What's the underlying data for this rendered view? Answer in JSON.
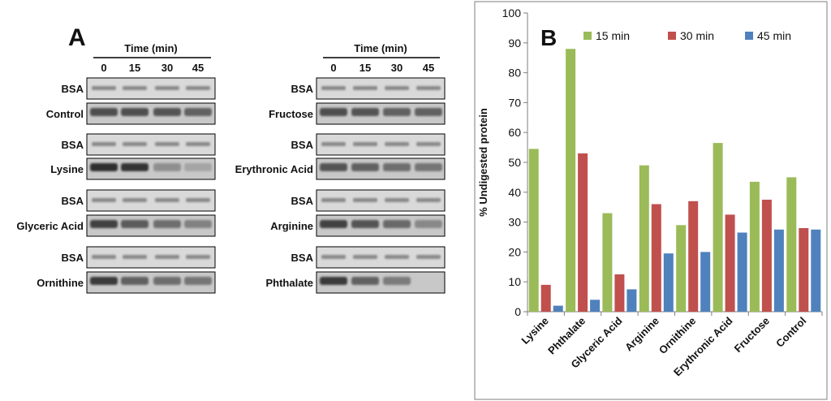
{
  "panel_a": {
    "label": "A",
    "time_header": "Time (min)",
    "time_points": [
      "0",
      "15",
      "30",
      "45"
    ],
    "left_groups": [
      {
        "sample": "Control",
        "bsa_label": "BSA",
        "band_intensity": [
          0.75,
          0.75,
          0.7,
          0.6
        ]
      },
      {
        "sample": "Lysine",
        "bsa_label": "BSA",
        "band_intensity": [
          1.0,
          0.95,
          0.25,
          0.08
        ]
      },
      {
        "sample": "Glyceric Acid",
        "bsa_label": "BSA",
        "band_intensity": [
          0.85,
          0.65,
          0.5,
          0.35
        ]
      },
      {
        "sample": "Ornithine",
        "bsa_label": "BSA",
        "band_intensity": [
          0.9,
          0.6,
          0.5,
          0.45
        ]
      }
    ],
    "right_groups": [
      {
        "sample": "Fructose",
        "bsa_label": "BSA",
        "band_intensity": [
          0.75,
          0.7,
          0.6,
          0.6
        ]
      },
      {
        "sample": "Erythronic Acid",
        "bsa_label": "BSA",
        "band_intensity": [
          0.7,
          0.6,
          0.5,
          0.45
        ]
      },
      {
        "sample": "Arginine",
        "bsa_label": "BSA",
        "band_intensity": [
          0.85,
          0.7,
          0.55,
          0.3
        ]
      },
      {
        "sample": "Phthalate",
        "bsa_label": "BSA",
        "band_intensity": [
          0.9,
          0.6,
          0.4,
          0.0
        ]
      }
    ]
  },
  "panel_b": {
    "label": "B"
  },
  "chart_data": {
    "type": "bar",
    "title": "",
    "xlabel": "",
    "ylabel": "% Undigested protein",
    "ylim": [
      0,
      100
    ],
    "yticks": [
      0,
      10,
      20,
      30,
      40,
      50,
      60,
      70,
      80,
      90,
      100
    ],
    "grid": false,
    "legend_position": "top",
    "categories": [
      "Lysine",
      "Phthalate",
      "Glyceric Acid",
      "Arginine",
      "Ornithine",
      "Erythronic Acid",
      "Fructose",
      "Control"
    ],
    "series": [
      {
        "name": "15 min",
        "color": "#9bbb59",
        "values": [
          54.5,
          88,
          33,
          49,
          29,
          56.5,
          43.5,
          45
        ]
      },
      {
        "name": "30 min",
        "color": "#c0504d",
        "values": [
          9,
          53,
          12.5,
          36,
          37,
          32.5,
          37.5,
          28
        ]
      },
      {
        "name": "45 min",
        "color": "#4f81bd",
        "values": [
          2,
          4,
          7.5,
          19.5,
          20,
          26.5,
          27.5,
          27.5
        ]
      }
    ]
  }
}
